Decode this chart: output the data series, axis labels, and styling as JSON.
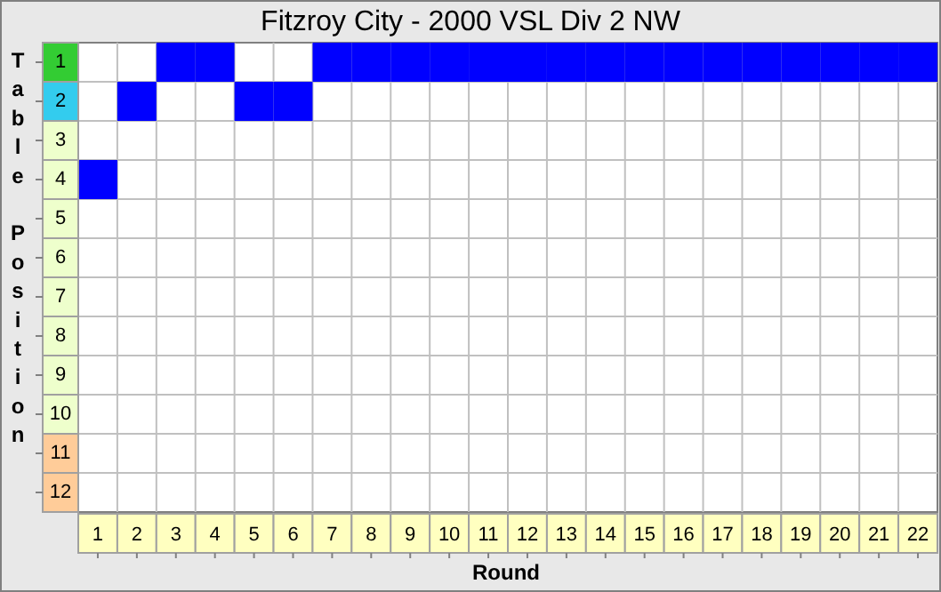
{
  "chart_data": {
    "type": "scatter",
    "title": "Fitzroy City - 2000 VSL Div 2 NW",
    "xlabel": "Round",
    "ylabel": "Table Position",
    "x": [
      1,
      2,
      3,
      4,
      5,
      6,
      7,
      8,
      9,
      10,
      11,
      12,
      13,
      14,
      15,
      16,
      17,
      18,
      19,
      20,
      21,
      22
    ],
    "values": [
      4,
      2,
      1,
      1,
      2,
      2,
      1,
      1,
      1,
      1,
      1,
      1,
      1,
      1,
      1,
      1,
      1,
      1,
      1,
      1,
      1,
      1
    ],
    "color": "#0000ff",
    "marker": "square",
    "xlim": [
      0.5,
      22.5
    ],
    "xticks": [
      1,
      {
        "value": 1.5,
        "label": null
      },
      2,
      {
        "value": 2.5,
        "label": null
      },
      3,
      {
        "value": 3.5,
        "label": null
      },
      4,
      {
        "value": 4.5,
        "label": null
      },
      5,
      {
        "value": 5.5,
        "label": null
      },
      6,
      {
        "value": 6.5,
        "label": null
      },
      7,
      {
        "value": 7.5,
        "label": null
      },
      8,
      {
        "value": 8.5,
        "label": null
      },
      9,
      {
        "value": 9.5,
        "label": null
      },
      10,
      {
        "value": 10.5,
        "label": null
      },
      11,
      {
        "value": 11.5,
        "label": null
      },
      12,
      {
        "value": 12.5,
        "label": null
      },
      13,
      {
        "value": 13.5,
        "label": null
      },
      14,
      {
        "value": 14.5,
        "label": null
      },
      15,
      {
        "value": 15.5,
        "label": null
      },
      16,
      {
        "value": 16.5,
        "label": null
      },
      17,
      {
        "value": 17.5,
        "label": null
      },
      18,
      {
        "value": 18.5,
        "label": null
      },
      19,
      {
        "value": 19.5,
        "label": null
      },
      20,
      {
        "value": 20.5,
        "label": null
      },
      21,
      {
        "value": 21.5,
        "label": null
      },
      22
    ],
    "ylim": [
      12.5,
      0.5
    ],
    "yticks": [
      1,
      {
        "value": 1.5,
        "label": null
      },
      2,
      {
        "value": 2.5,
        "label": null
      },
      3,
      {
        "value": 3.5,
        "label": null
      },
      4,
      {
        "value": 4.5,
        "label": null
      },
      5,
      {
        "value": 5.5,
        "label": null
      },
      6,
      {
        "value": 6.5,
        "label": null
      },
      7,
      {
        "value": 7.5,
        "label": null
      },
      8,
      {
        "value": 8.5,
        "label": null
      },
      9,
      {
        "value": 9.5,
        "label": null
      },
      10,
      {
        "value": 10.5,
        "label": null
      },
      11,
      {
        "value": 11.5,
        "label": null
      },
      12
    ],
    "grid": true
  }
}
